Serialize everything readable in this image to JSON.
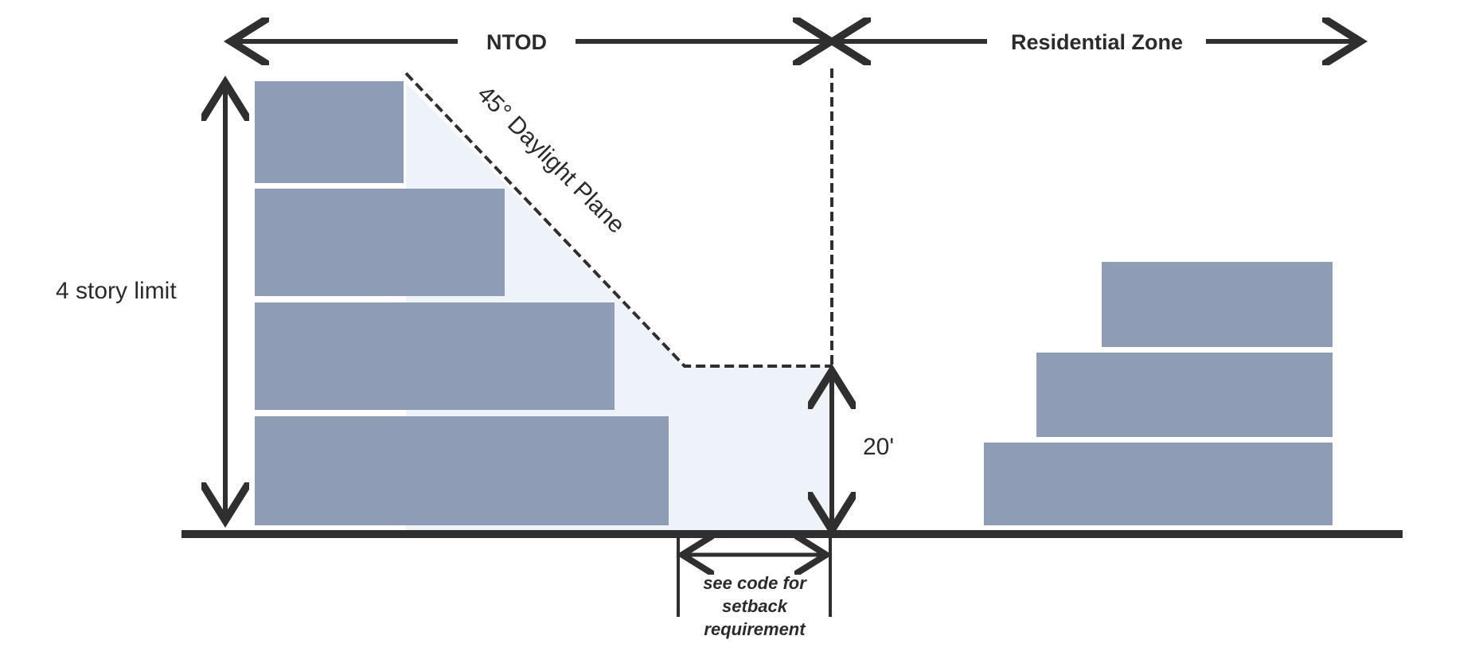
{
  "labels": {
    "ntod": "NTOD",
    "residential_zone": "Residential Zone",
    "story_limit": "4 story limit",
    "daylight_plane": "45° Daylight Plane",
    "height": "20'",
    "setback_note": [
      "see code for",
      "setback",
      "requirement"
    ]
  },
  "colors": {
    "building_block": "#8e9cb5",
    "daylight_zone": "#eef3fa",
    "line": "#2f2f2f",
    "text": "#2b2b2b"
  },
  "icons": [
    "double-arrow-icon",
    "dashed-line"
  ]
}
